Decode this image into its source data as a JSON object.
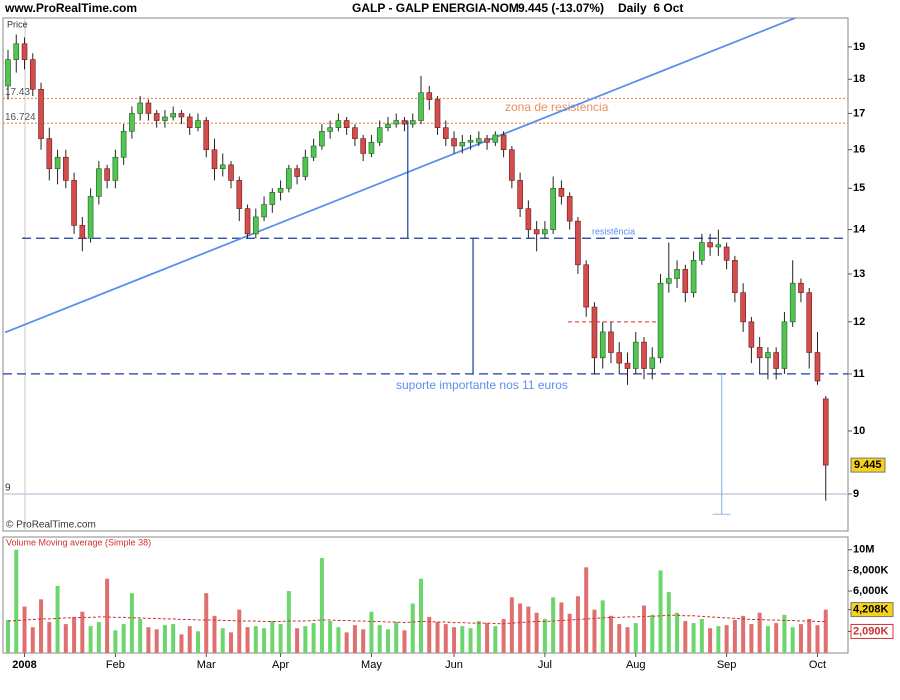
{
  "header": {
    "site": "www.ProRealTime.com",
    "symbol": "GALP - GALP ENERGIA-NOM",
    "last": "9.445 (-13.07%)",
    "period": "Daily  6 Oct"
  },
  "chart_data": [
    {
      "type": "candlestick",
      "panel_label": "Price",
      "credit": "© ProRealTime.com",
      "log_scale": true,
      "up_color": "#52c452",
      "down_color": "#d44c4c",
      "last_price": 9.445,
      "ylim": [
        8.46,
        19.94
      ],
      "yticks": [
        9,
        10,
        11,
        12,
        13,
        14,
        15,
        16,
        17,
        18,
        19
      ],
      "ohlc": [
        [
          17.8,
          18.9,
          17.4,
          18.6
        ],
        [
          18.6,
          19.4,
          18.2,
          19.1
        ],
        [
          19.1,
          19.3,
          18.3,
          18.6
        ],
        [
          18.6,
          18.8,
          17.5,
          17.7
        ],
        [
          17.7,
          17.9,
          16.0,
          16.3
        ],
        [
          16.3,
          16.6,
          15.2,
          15.5
        ],
        [
          15.5,
          16.0,
          15.1,
          15.8
        ],
        [
          15.8,
          16.0,
          15.0,
          15.2
        ],
        [
          15.2,
          15.4,
          13.9,
          14.1
        ],
        [
          14.1,
          14.3,
          13.5,
          13.8
        ],
        [
          13.8,
          15.0,
          13.7,
          14.8
        ],
        [
          14.8,
          15.7,
          14.6,
          15.5
        ],
        [
          15.5,
          15.6,
          15.0,
          15.2
        ],
        [
          15.2,
          16.0,
          15.0,
          15.8
        ],
        [
          15.8,
          16.7,
          15.6,
          16.5
        ],
        [
          16.5,
          17.2,
          16.3,
          17.0
        ],
        [
          17.0,
          17.5,
          16.8,
          17.3
        ],
        [
          17.3,
          17.4,
          16.8,
          17.0
        ],
        [
          17.0,
          17.1,
          16.6,
          16.8
        ],
        [
          16.8,
          17.1,
          16.6,
          16.9
        ],
        [
          16.9,
          17.2,
          16.8,
          17.0
        ],
        [
          17.0,
          17.1,
          16.7,
          16.9
        ],
        [
          16.9,
          17.0,
          16.4,
          16.6
        ],
        [
          16.6,
          17.0,
          16.5,
          16.8
        ],
        [
          16.8,
          16.9,
          15.8,
          16.0
        ],
        [
          16.0,
          16.3,
          15.2,
          15.5
        ],
        [
          15.5,
          15.9,
          15.3,
          15.6
        ],
        [
          15.6,
          15.7,
          15.0,
          15.2
        ],
        [
          15.2,
          15.3,
          14.2,
          14.5
        ],
        [
          14.5,
          14.6,
          13.8,
          13.9
        ],
        [
          13.9,
          14.5,
          13.8,
          14.3
        ],
        [
          14.3,
          14.8,
          14.2,
          14.6
        ],
        [
          14.6,
          15.0,
          14.4,
          14.9
        ],
        [
          14.9,
          15.2,
          14.7,
          15.0
        ],
        [
          15.0,
          15.6,
          14.9,
          15.5
        ],
        [
          15.5,
          15.6,
          15.1,
          15.3
        ],
        [
          15.3,
          16.0,
          15.2,
          15.8
        ],
        [
          15.8,
          16.3,
          15.7,
          16.1
        ],
        [
          16.1,
          16.7,
          16.0,
          16.5
        ],
        [
          16.5,
          16.8,
          16.3,
          16.6
        ],
        [
          16.6,
          17.0,
          16.5,
          16.8
        ],
        [
          16.8,
          16.9,
          16.4,
          16.6
        ],
        [
          16.6,
          16.7,
          16.1,
          16.3
        ],
        [
          16.3,
          16.4,
          15.7,
          15.9
        ],
        [
          15.9,
          16.4,
          15.8,
          16.2
        ],
        [
          16.2,
          16.8,
          16.1,
          16.6
        ],
        [
          16.6,
          16.9,
          16.5,
          16.7
        ],
        [
          16.7,
          17.0,
          16.6,
          16.8
        ],
        [
          16.8,
          16.9,
          16.5,
          16.7
        ],
        [
          16.7,
          17.0,
          16.6,
          16.8
        ],
        [
          16.8,
          18.1,
          16.7,
          17.6
        ],
        [
          17.6,
          17.8,
          17.1,
          17.4
        ],
        [
          17.4,
          17.5,
          16.4,
          16.6
        ],
        [
          16.6,
          16.8,
          16.1,
          16.3
        ],
        [
          16.3,
          16.5,
          15.9,
          16.1
        ],
        [
          16.1,
          16.4,
          15.9,
          16.2
        ],
        [
          16.2,
          16.4,
          16.0,
          16.25
        ],
        [
          16.2,
          16.5,
          16.1,
          16.3
        ],
        [
          16.3,
          16.4,
          16.0,
          16.2
        ],
        [
          16.2,
          16.5,
          16.1,
          16.4
        ],
        [
          16.4,
          16.5,
          15.8,
          16.0
        ],
        [
          16.0,
          16.1,
          15.0,
          15.2
        ],
        [
          15.2,
          15.4,
          14.3,
          14.5
        ],
        [
          14.5,
          14.7,
          13.8,
          14.0
        ],
        [
          14.0,
          14.2,
          13.5,
          13.9
        ],
        [
          13.9,
          14.2,
          13.8,
          14.0
        ],
        [
          14.0,
          15.3,
          13.9,
          15.0
        ],
        [
          15.0,
          15.2,
          14.6,
          14.8
        ],
        [
          14.8,
          14.9,
          14.0,
          14.2
        ],
        [
          14.2,
          14.3,
          13.0,
          13.2
        ],
        [
          13.2,
          13.3,
          12.1,
          12.3
        ],
        [
          12.3,
          12.4,
          11.0,
          11.3
        ],
        [
          11.3,
          12.0,
          11.1,
          11.8
        ],
        [
          11.8,
          12.0,
          11.2,
          11.4
        ],
        [
          11.4,
          11.6,
          11.0,
          11.2
        ],
        [
          11.2,
          11.4,
          10.8,
          11.1
        ],
        [
          11.1,
          11.8,
          11.0,
          11.6
        ],
        [
          11.6,
          11.7,
          10.9,
          11.1
        ],
        [
          11.1,
          11.5,
          10.9,
          11.3
        ],
        [
          11.3,
          13.0,
          11.2,
          12.8
        ],
        [
          12.8,
          13.7,
          12.6,
          12.9
        ],
        [
          12.9,
          13.3,
          12.7,
          13.1
        ],
        [
          13.1,
          13.2,
          12.4,
          12.6
        ],
        [
          12.6,
          13.5,
          12.5,
          13.3
        ],
        [
          13.3,
          13.9,
          13.2,
          13.7
        ],
        [
          13.7,
          13.9,
          13.4,
          13.6
        ],
        [
          13.6,
          14.0,
          13.4,
          13.65
        ],
        [
          13.6,
          13.7,
          13.1,
          13.3
        ],
        [
          13.3,
          13.4,
          12.4,
          12.6
        ],
        [
          12.6,
          12.8,
          11.8,
          12.0
        ],
        [
          12.0,
          12.1,
          11.2,
          11.5
        ],
        [
          11.5,
          11.7,
          11.0,
          11.3
        ],
        [
          11.3,
          11.5,
          10.9,
          11.4
        ],
        [
          11.4,
          11.5,
          10.9,
          11.1
        ],
        [
          11.1,
          12.2,
          11.0,
          12.0
        ],
        [
          12.0,
          13.3,
          11.9,
          12.8
        ],
        [
          12.8,
          12.9,
          12.4,
          12.6
        ],
        [
          12.6,
          12.7,
          11.1,
          11.4
        ],
        [
          11.4,
          11.8,
          10.8,
          10.87
        ],
        [
          10.55,
          10.6,
          8.9,
          9.445
        ]
      ],
      "hlines": [
        {
          "value": 17.43,
          "label": "17.43",
          "color": "#e8905a",
          "style": "dotted"
        },
        {
          "value": 16.724,
          "label": "16.724",
          "color": "#e8905a",
          "style": "dotted"
        },
        {
          "value": 13.8,
          "label": "resistência",
          "color": "#1f3a9c",
          "style": "dashed"
        },
        {
          "value": 11,
          "label": "suporte importante nos 11 euros",
          "color": "#1f3a9c",
          "style": "dashed"
        },
        {
          "value": 9,
          "label": "9",
          "color": "#b8c4d8",
          "style": "solid"
        }
      ],
      "annotations": [
        "zona de resistencia"
      ],
      "trendline": {
        "x": [
          -0.36,
          95.3
        ],
        "y": [
          11.79,
          19.94
        ],
        "color": "#5b8ff0"
      },
      "segment": {
        "x": [
          67.8,
          79.3
        ],
        "value": 12,
        "color": "#d03030"
      },
      "vlines": [
        {
          "x": 48.4,
          "y": [
            13.8,
            16.8
          ],
          "color": "#1f3a9c"
        },
        {
          "x": 56.3,
          "y": [
            13.8,
            11
          ],
          "color": "#1f3a9c"
        },
        {
          "x": 86.4,
          "y": [
            11,
            8.7
          ],
          "color": "#9ab8e8"
        }
      ]
    },
    {
      "type": "volume",
      "title": "Volume Moving average (Simple 38)",
      "ma_color": "#d03030",
      "ylim": [
        0,
        11240
      ],
      "yticks": [
        {
          "value": 10000,
          "label": "10M"
        },
        {
          "value": 8000,
          "label": "8,000K"
        },
        {
          "value": 6000,
          "label": "6,000K"
        },
        {
          "value": 4208,
          "label": "4,208K"
        },
        {
          "value": 2090,
          "label": "2,090K"
        }
      ],
      "categories": [
        null,
        null,
        "2008",
        null,
        null,
        null,
        null,
        null,
        null,
        null,
        null,
        null,
        null,
        "Feb",
        null,
        null,
        null,
        null,
        null,
        null,
        null,
        null,
        null,
        null,
        "Mar",
        null,
        null,
        null,
        null,
        null,
        null,
        null,
        null,
        "Apr",
        null,
        null,
        null,
        null,
        null,
        null,
        null,
        null,
        null,
        null,
        "May",
        null,
        null,
        null,
        null,
        null,
        null,
        null,
        null,
        null,
        "Jun",
        null,
        null,
        null,
        null,
        null,
        null,
        null,
        null,
        null,
        null,
        "Jul",
        null,
        null,
        null,
        null,
        null,
        null,
        null,
        null,
        null,
        null,
        "Aug",
        null,
        null,
        null,
        null,
        null,
        null,
        null,
        null,
        null,
        null,
        "Sep",
        null,
        null,
        null,
        null,
        null,
        null,
        null,
        null,
        null,
        null,
        "Oct",
        null
      ],
      "values": [
        3200,
        10000,
        4500,
        2500,
        5200,
        3000,
        6500,
        2800,
        3500,
        4000,
        2600,
        3000,
        7200,
        2200,
        2800,
        5800,
        3300,
        2500,
        2300,
        2700,
        2800,
        1800,
        2600,
        2100,
        5800,
        3600,
        2400,
        2000,
        4200,
        2500,
        2600,
        2400,
        3100,
        2800,
        6000,
        2400,
        2600,
        2900,
        9200,
        3100,
        2500,
        2000,
        2700,
        2300,
        4000,
        2700,
        2300,
        3000,
        2200,
        4800,
        7200,
        3500,
        3000,
        2800,
        2500,
        2600,
        2400,
        3100,
        2900,
        2600,
        3300,
        5400,
        4800,
        4500,
        3900,
        3300,
        5400,
        4900,
        3800,
        5500,
        8300,
        4200,
        5100,
        3600,
        2800,
        2500,
        2900,
        4600,
        3700,
        8000,
        5900,
        3900,
        3100,
        2900,
        3300,
        2400,
        2600,
        2700,
        3200,
        3600,
        2800,
        3900,
        2600,
        2900,
        3700,
        2500,
        2800,
        3300,
        2700,
        4208
      ],
      "ma": [
        3100,
        3150,
        3200,
        3250,
        3300,
        3300,
        3350,
        3400,
        3400,
        3450,
        3450,
        3500,
        3500,
        3450,
        3450,
        3400,
        3400,
        3350,
        3350,
        3300,
        3300,
        3250,
        3250,
        3200,
        3200,
        3200,
        3150,
        3150,
        3100,
        3100,
        3100,
        3050,
        3050,
        3050,
        3100,
        3100,
        3100,
        3150,
        3200,
        3200,
        3150,
        3150,
        3100,
        3100,
        3050,
        3050,
        3000,
        3000,
        2950,
        3000,
        3050,
        3050,
        3000,
        3000,
        2950,
        2950,
        2900,
        2900,
        2900,
        2850,
        2850,
        2900,
        2950,
        3000,
        3050,
        3050,
        3100,
        3150,
        3200,
        3250,
        3300,
        3350,
        3400,
        3450,
        3450,
        3500,
        3500,
        3550,
        3550,
        3600,
        3650,
        3650,
        3600,
        3600,
        3550,
        3500,
        3450,
        3400,
        3350,
        3300,
        3250,
        3250,
        3200,
        3200,
        3150,
        3150,
        3100,
        3100,
        3050,
        3050
      ]
    }
  ]
}
